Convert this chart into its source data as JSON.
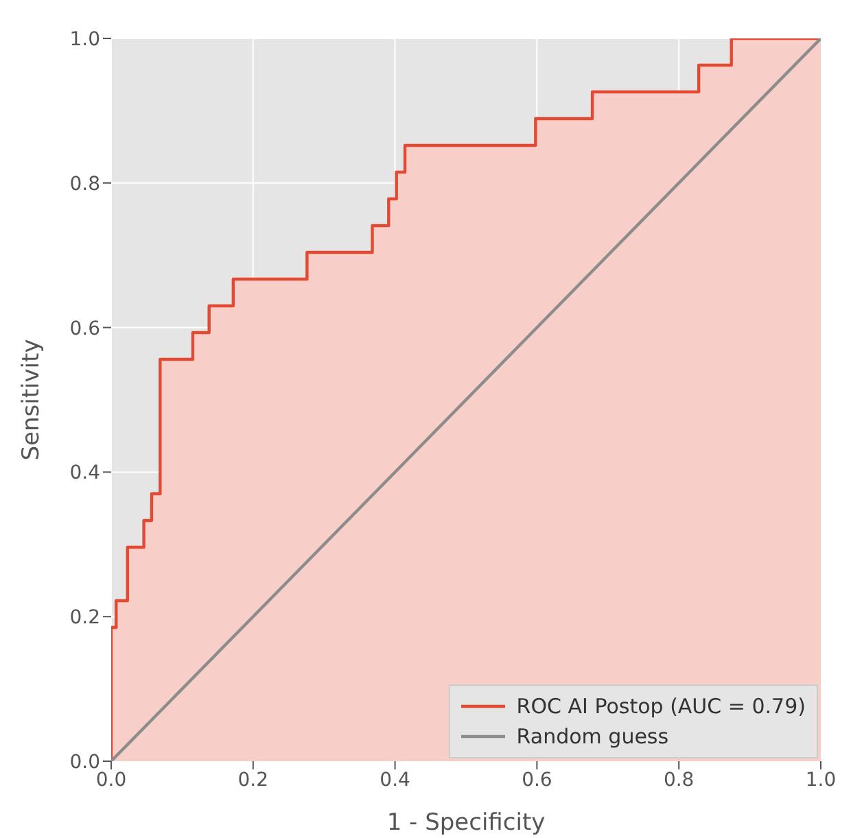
{
  "chart_data": {
    "type": "step",
    "xlabel": "1 - Specificity",
    "ylabel": "Sensitivity",
    "xlim": [
      0,
      1
    ],
    "ylim": [
      0,
      1
    ],
    "xticks": [
      {
        "value": 0,
        "label": "0.0"
      },
      {
        "value": 0.2,
        "label": "0.2"
      },
      {
        "value": 0.4,
        "label": "0.4"
      },
      {
        "value": 0.6,
        "label": "0.6"
      },
      {
        "value": 0.8,
        "label": "0.8"
      },
      {
        "value": 1,
        "label": "1.0"
      }
    ],
    "yticks": [
      {
        "value": 0,
        "label": "0.0"
      },
      {
        "value": 0.2,
        "label": "0.2"
      },
      {
        "value": 0.4,
        "label": "0.4"
      },
      {
        "value": 0.6,
        "label": "0.6"
      },
      {
        "value": 0.8,
        "label": "0.8"
      },
      {
        "value": 1,
        "label": "1.0"
      }
    ],
    "grid": true,
    "legend": "bottom right",
    "series": [
      {
        "name": "ROC AI Postop (AUC = 0.79)",
        "color": "#e24a33",
        "x": [
          0,
          0,
          0.007,
          0.023,
          0.046,
          0.057,
          0.069,
          0.115,
          0.138,
          0.172,
          0.276,
          0.368,
          0.391,
          0.402,
          0.414,
          0.598,
          0.678,
          0.828,
          0.874,
          1
        ],
        "values": [
          0,
          0.185,
          0.222,
          0.296,
          0.333,
          0.37,
          0.556,
          0.593,
          0.63,
          0.667,
          0.704,
          0.741,
          0.778,
          0.815,
          0.852,
          0.889,
          0.926,
          0.963,
          1,
          1
        ]
      },
      {
        "name": "Random guess",
        "type": "line",
        "color": "#8c8c8c",
        "x": [
          0,
          1
        ],
        "values": [
          0,
          1
        ]
      }
    ]
  }
}
